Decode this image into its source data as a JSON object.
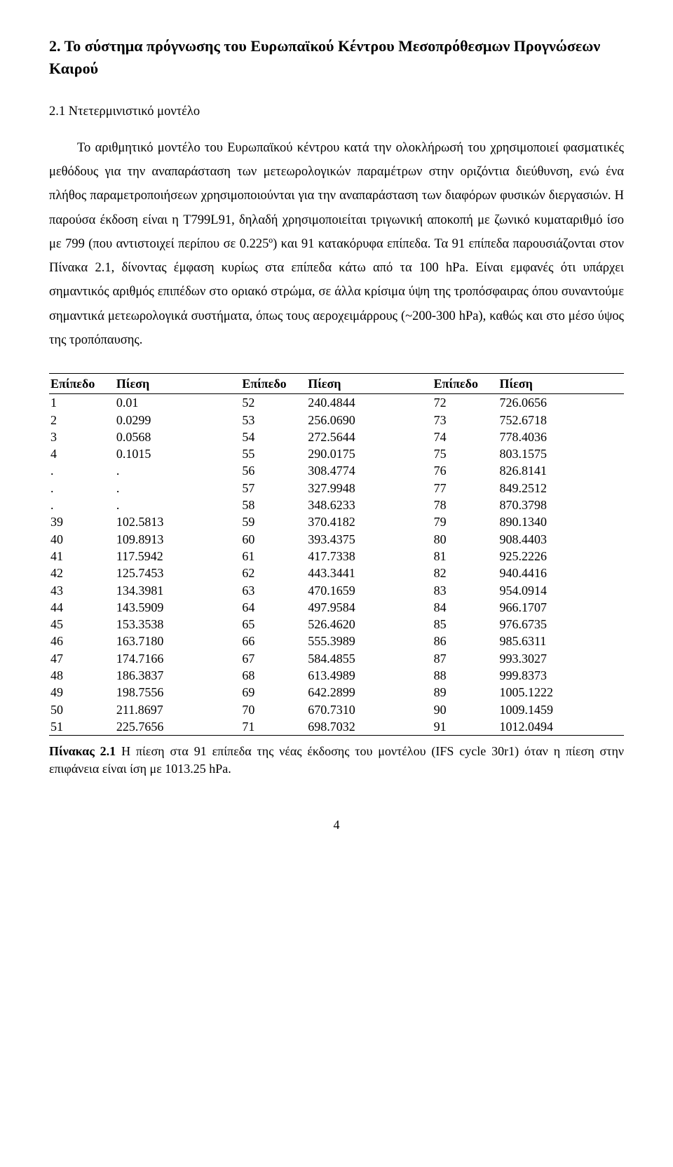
{
  "section_title": "2. Το σύστημα πρόγνωσης του Ευρωπαϊκού Κέντρου Μεσοπρόθεσμων Προγνώσεων Καιρού",
  "subsection_title": "2.1 Ντετερμινιστικό μοντέλο",
  "paragraph": "Το αριθμητικό μοντέλο του Ευρωπαϊκού κέντρου κατά την ολοκλήρωσή του χρησιμοποιεί φασματικές μεθόδους για την αναπαράσταση των μετεωρολογικών παραμέτρων στην οριζόντια διεύθυνση, ενώ ένα πλήθος παραμετροποιήσεων χρησιμοποιούνται για την αναπαράσταση των διαφόρων φυσικών διεργασιών. Η παρούσα έκδοση είναι η T799L91, δηλαδή χρησιμοποιείται τριγωνική αποκοπή με ζωνικό κυματαριθμό ίσο με 799 (που αντιστοιχεί περίπου σε 0.225º) και 91 κατακόρυφα επίπεδα. Τα 91 επίπεδα παρουσιάζονται στον Πίνακα 2.1, δίνοντας έμφαση κυρίως στα επίπεδα κάτω από τα 100 hPa. Είναι εμφανές ότι υπάρχει σημαντικός αριθμός επιπέδων στο οριακό στρώμα, σε άλλα κρίσιμα ύψη της τροπόσφαιρας όπου συναντούμε σημαντικά μετεωρολογικά συστήματα, όπως τους αεροχειμάρρους (~200-300 hPa), καθώς και στο μέσο ύψος της τροπόπαυσης.",
  "table": {
    "headers": [
      "Επίπεδο",
      "Πίεση",
      "Επίπεδο",
      "Πίεση",
      "Επίπεδο",
      "Πίεση"
    ],
    "rows": [
      [
        "1",
        "0.01",
        "52",
        "240.4844",
        "72",
        "726.0656"
      ],
      [
        "2",
        "0.0299",
        "53",
        "256.0690",
        "73",
        "752.6718"
      ],
      [
        "3",
        "0.0568",
        "54",
        "272.5644",
        "74",
        "778.4036"
      ],
      [
        "4",
        "0.1015",
        "55",
        "290.0175",
        "75",
        "803.1575"
      ],
      [
        ".",
        ".",
        "56",
        "308.4774",
        "76",
        "826.8141"
      ],
      [
        ".",
        ".",
        "57",
        "327.9948",
        "77",
        "849.2512"
      ],
      [
        ".",
        ".",
        "58",
        "348.6233",
        "78",
        "870.3798"
      ],
      [
        "39",
        "102.5813",
        "59",
        "370.4182",
        "79",
        "890.1340"
      ],
      [
        "40",
        "109.8913",
        "60",
        "393.4375",
        "80",
        "908.4403"
      ],
      [
        "41",
        "117.5942",
        "61",
        "417.7338",
        "81",
        "925.2226"
      ],
      [
        "42",
        "125.7453",
        "62",
        "443.3441",
        "82",
        "940.4416"
      ],
      [
        "43",
        "134.3981",
        "63",
        "470.1659",
        "83",
        "954.0914"
      ],
      [
        "44",
        "143.5909",
        "64",
        "497.9584",
        "84",
        "966.1707"
      ],
      [
        "45",
        "153.3538",
        "65",
        "526.4620",
        "85",
        "976.6735"
      ],
      [
        "46",
        "163.7180",
        "66",
        "555.3989",
        "86",
        "985.6311"
      ],
      [
        "47",
        "174.7166",
        "67",
        "584.4855",
        "87",
        "993.3027"
      ],
      [
        "48",
        "186.3837",
        "68",
        "613.4989",
        "88",
        "999.8373"
      ],
      [
        "49",
        "198.7556",
        "69",
        "642.2899",
        "89",
        "1005.1222"
      ],
      [
        "50",
        "211.8697",
        "70",
        "670.7310",
        "90",
        "1009.1459"
      ],
      [
        "51",
        "225.7656",
        "71",
        "698.7032",
        "91",
        "1012.0494"
      ]
    ]
  },
  "caption_bold": "Πίνακας 2.1",
  "caption_rest": " Η πίεση στα 91 επίπεδα της νέας έκδοσης του μοντέλου (IFS cycle 30r1) όταν η πίεση στην επιφάνεια είναι ίση με 1013.25 hPa.",
  "page_number": "4"
}
